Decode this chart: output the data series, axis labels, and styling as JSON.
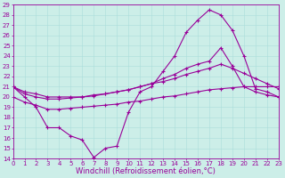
{
  "xlabel": "Windchill (Refroidissement éolien,°C)",
  "background_color": "#cceee8",
  "grid_color": "#aaddda",
  "line_color": "#990099",
  "xlim": [
    0,
    23
  ],
  "ylim": [
    14,
    29
  ],
  "yticks": [
    14,
    15,
    16,
    17,
    18,
    19,
    20,
    21,
    22,
    23,
    24,
    25,
    26,
    27,
    28,
    29
  ],
  "xticks": [
    0,
    1,
    2,
    3,
    4,
    5,
    6,
    7,
    8,
    9,
    10,
    11,
    12,
    13,
    14,
    15,
    16,
    17,
    18,
    19,
    20,
    21,
    22,
    23
  ],
  "curve1_x": [
    0,
    1,
    2,
    3,
    4,
    5,
    6,
    7,
    8,
    9,
    10,
    11,
    12,
    13,
    14,
    15,
    16,
    17,
    18,
    19,
    20,
    21,
    22,
    23
  ],
  "curve1_y": [
    21.0,
    20.0,
    19.0,
    17.0,
    17.0,
    16.2,
    15.8,
    14.1,
    15.0,
    15.2,
    18.5,
    20.5,
    21.0,
    22.5,
    24.0,
    26.3,
    27.5,
    28.5,
    28.0,
    26.5,
    24.0,
    20.8,
    20.5,
    20.0
  ],
  "curve2_x": [
    0,
    1,
    2,
    3,
    4,
    5,
    6,
    7,
    8,
    9,
    10,
    11,
    12,
    13,
    14,
    15,
    16,
    17,
    18,
    19,
    20,
    21,
    22,
    23
  ],
  "curve2_y": [
    21.0,
    20.5,
    20.3,
    20.0,
    20.0,
    20.0,
    20.0,
    20.2,
    20.3,
    20.5,
    20.7,
    21.0,
    21.3,
    21.8,
    22.2,
    22.8,
    23.2,
    23.5,
    24.8,
    23.0,
    21.0,
    20.5,
    20.2,
    20.0
  ],
  "curve3_x": [
    0,
    1,
    2,
    3,
    4,
    5,
    6,
    7,
    8,
    9,
    10,
    11,
    12,
    13,
    14,
    15,
    16,
    17,
    18,
    19,
    20,
    21,
    22,
    23
  ],
  "curve3_y": [
    21.0,
    20.3,
    20.0,
    19.8,
    19.8,
    19.9,
    20.0,
    20.1,
    20.3,
    20.5,
    20.7,
    21.0,
    21.3,
    21.5,
    21.8,
    22.2,
    22.5,
    22.8,
    23.2,
    22.8,
    22.3,
    21.8,
    21.3,
    20.8
  ],
  "curve4_x": [
    0,
    1,
    2,
    3,
    4,
    5,
    6,
    7,
    8,
    9,
    10,
    11,
    12,
    13,
    14,
    15,
    16,
    17,
    18,
    19,
    20,
    21,
    22,
    23
  ],
  "curve4_y": [
    20.0,
    19.5,
    19.2,
    18.8,
    18.8,
    18.9,
    19.0,
    19.1,
    19.2,
    19.3,
    19.5,
    19.6,
    19.8,
    20.0,
    20.1,
    20.3,
    20.5,
    20.7,
    20.8,
    20.9,
    21.0,
    21.0,
    21.0,
    21.0
  ],
  "tick_fontsize": 5.0,
  "label_fontsize": 6.0
}
